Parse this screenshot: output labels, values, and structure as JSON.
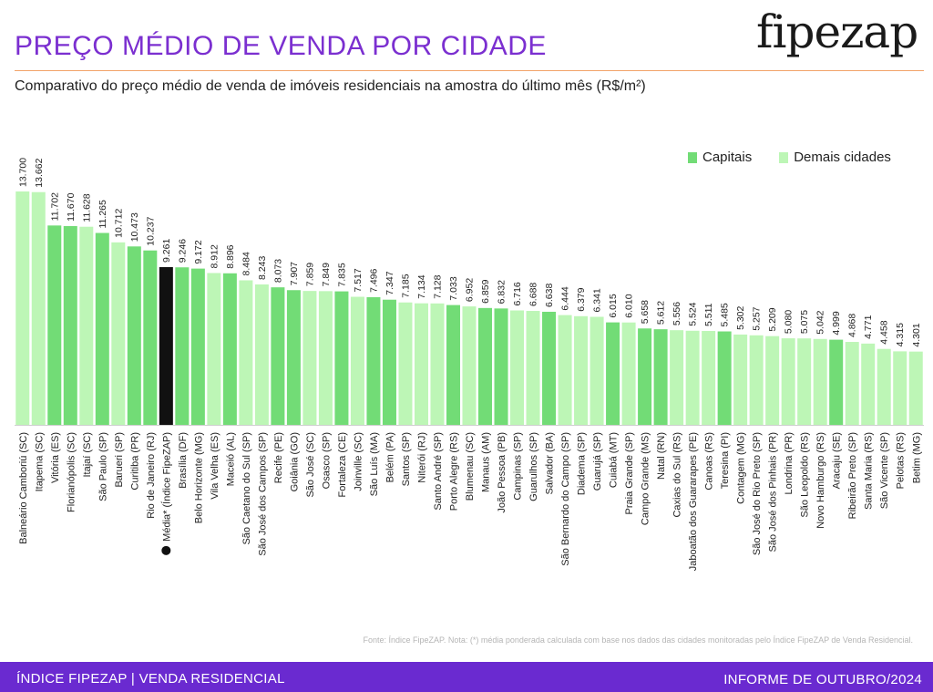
{
  "header": {
    "title": "PREÇO MÉDIO DE VENDA POR CIDADE",
    "subtitle": "Comparativo do preço médio de venda de imóveis residenciais na amostra do último mês (R$/m²)",
    "logo_text_left": "fipe",
    "logo_text_right": "zap"
  },
  "legend": {
    "capitals_label": "Capitais",
    "others_label": "Demais cidades"
  },
  "colors": {
    "capital": "#72dc76",
    "other": "#bdf6b6",
    "average": "#111111",
    "title": "#7b2fd0",
    "footer": "#6a2ad0"
  },
  "chart_data": {
    "type": "bar",
    "categories": [
      "Balneário Camboriú (SC)",
      "Itapema (SC)",
      "Vitória (ES)",
      "Florianópolis (SC)",
      "Itajaí (SC)",
      "São Paulo (SP)",
      "Barueri (SP)",
      "Curitiba (PR)",
      "Rio de Janeiro (RJ)",
      "Média* (Índice FipeZAP)",
      "Brasília (DF)",
      "Belo Horizonte (MG)",
      "Vila Velha (ES)",
      "Maceió (AL)",
      "São Caetano do Sul (SP)",
      "São José dos Campos (SP)",
      "Recife (PE)",
      "Goiânia (GO)",
      "São José (SC)",
      "Osasco (SP)",
      "Fortaleza (CE)",
      "Joinville (SC)",
      "São Luís (MA)",
      "Belém (PA)",
      "Santos (SP)",
      "Niterói (RJ)",
      "Santo André (SP)",
      "Porto Alegre (RS)",
      "Blumenau (SC)",
      "Manaus (AM)",
      "João Pessoa (PB)",
      "Campinas (SP)",
      "Guarulhos (SP)",
      "Salvador (BA)",
      "São Bernardo do Campo (SP)",
      "Diadema (SP)",
      "Guarujá (SP)",
      "Cuiabá (MT)",
      "Praia Grande (SP)",
      "Campo Grande (MS)",
      "Natal (RN)",
      "Caxias do Sul (RS)",
      "Jaboatão dos Guararapes (PE)",
      "Canoas (RS)",
      "Teresina (PI)",
      "Contagem (MG)",
      "São José do Rio Preto (SP)",
      "São José dos Pinhais (PR)",
      "Londrina (PR)",
      "São Leopoldo (RS)",
      "Novo Hamburgo (RS)",
      "Aracaju (SE)",
      "Ribeirão Preto (SP)",
      "Santa Maria (RS)",
      "São Vicente (SP)",
      "Pelotas (RS)",
      "Betim (MG)"
    ],
    "values": [
      13700,
      13662,
      11702,
      11670,
      11628,
      11265,
      10712,
      10473,
      10237,
      9261,
      9246,
      9172,
      8912,
      8896,
      8484,
      8243,
      8073,
      7907,
      7859,
      7849,
      7835,
      7517,
      7496,
      7347,
      7185,
      7134,
      7128,
      7033,
      6952,
      6859,
      6832,
      6716,
      6688,
      6638,
      6444,
      6379,
      6341,
      6015,
      6010,
      5658,
      5612,
      5556,
      5524,
      5511,
      5485,
      5302,
      5257,
      5209,
      5080,
      5075,
      5042,
      4999,
      4868,
      4771,
      4458,
      4315,
      4301
    ],
    "labels": [
      "13.700",
      "13.662",
      "11.702",
      "11.670",
      "11.628",
      "11.265",
      "10.712",
      "10.473",
      "10.237",
      "9.261",
      "9.246",
      "9.172",
      "8.912",
      "8.896",
      "8.484",
      "8.243",
      "8.073",
      "7.907",
      "7.859",
      "7.849",
      "7.835",
      "7.517",
      "7.496",
      "7.347",
      "7.185",
      "7.134",
      "7.128",
      "7.033",
      "6.952",
      "6.859",
      "6.832",
      "6.716",
      "6.688",
      "6.638",
      "6.444",
      "6.379",
      "6.341",
      "6.015",
      "6.010",
      "5.658",
      "5.612",
      "5.556",
      "5.524",
      "5.511",
      "5.485",
      "5.302",
      "5.257",
      "5.209",
      "5.080",
      "5.075",
      "5.042",
      "4.999",
      "4.868",
      "4.771",
      "4.458",
      "4.315",
      "4.301"
    ],
    "group": [
      "other",
      "other",
      "capital",
      "capital",
      "other",
      "capital",
      "other",
      "capital",
      "capital",
      "average",
      "capital",
      "capital",
      "other",
      "capital",
      "other",
      "other",
      "capital",
      "capital",
      "other",
      "other",
      "capital",
      "other",
      "capital",
      "capital",
      "other",
      "other",
      "other",
      "capital",
      "other",
      "capital",
      "capital",
      "other",
      "other",
      "capital",
      "other",
      "other",
      "other",
      "capital",
      "other",
      "capital",
      "capital",
      "other",
      "other",
      "other",
      "capital",
      "other",
      "other",
      "other",
      "other",
      "other",
      "other",
      "capital",
      "other",
      "other",
      "other",
      "other",
      "other"
    ],
    "ylim": [
      0,
      13700
    ],
    "grid": false,
    "legend_position": "top-right"
  },
  "source_note": "Fonte: Índice FipeZAP. Nota: (*) média ponderada calculada com base nos dados das cidades monitoradas pelo Índice FipeZAP de Venda Residencial.",
  "footer": {
    "left": "ÍNDICE FIPEZAP | VENDA RESIDENCIAL",
    "right": "INFORME DE OUTUBRO/2024"
  }
}
